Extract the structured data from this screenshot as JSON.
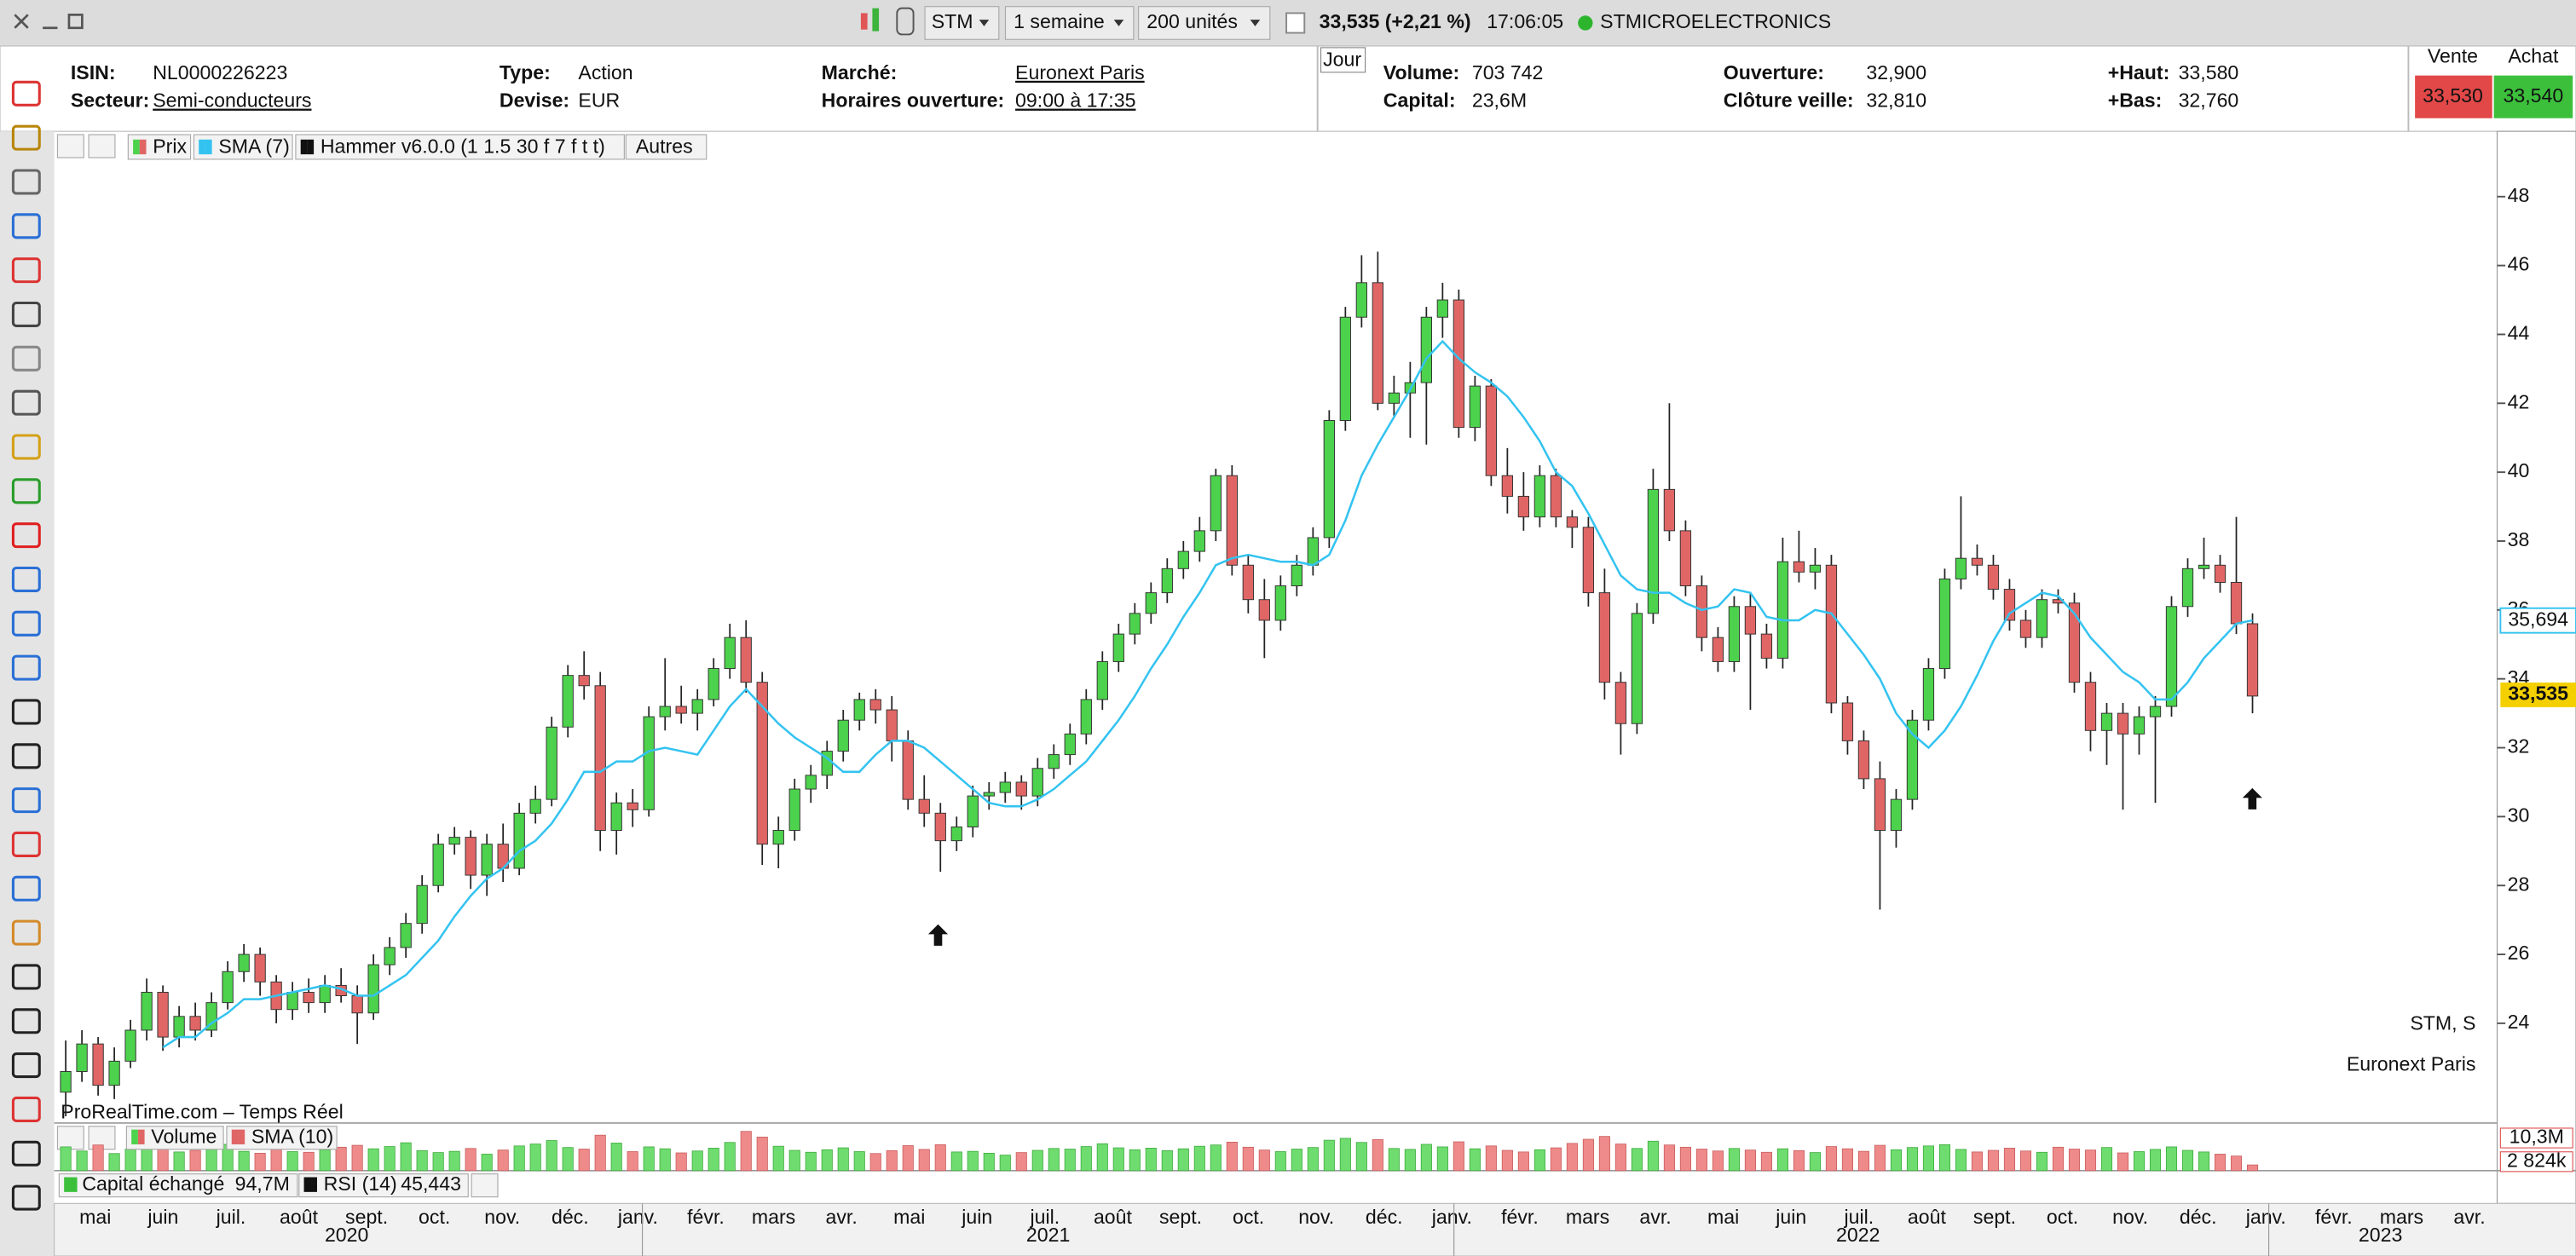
{
  "toolbar": {
    "symbol": "STM",
    "period": "1 semaine",
    "units": "200 unités",
    "quote": "33,535 (+2,21 %)",
    "time": "17:06:05",
    "name": "STMICROELECTRONICS"
  },
  "info": {
    "fields": [
      {
        "label": "ISIN:",
        "value": "NL0000226223"
      },
      {
        "label": "Secteur:",
        "value": "Semi-conducteurs",
        "link": true
      },
      {
        "label": "Type:",
        "value": "Action"
      },
      {
        "label": "Devise:",
        "value": "EUR"
      },
      {
        "label": "Marché:",
        "value": "Euronext Paris",
        "link": true
      },
      {
        "label": "Horaires ouverture:",
        "value": "09:00 à 17:35",
        "link": true
      },
      {
        "label": "Volume:",
        "value": "703 742"
      },
      {
        "label": "Capital:",
        "value": "23,6M"
      },
      {
        "label": "Ouverture:",
        "value": "32,900"
      },
      {
        "label": "Clôture veille:",
        "value": "32,810"
      },
      {
        "label": "+Haut:",
        "value": "33,580"
      },
      {
        "label": "+Bas:",
        "value": "32,760"
      }
    ],
    "period_tab": "Jour",
    "sell": {
      "label": "Vente",
      "price": "33,530"
    },
    "buy": {
      "label": "Achat",
      "price": "33,540"
    }
  },
  "chart_data": {
    "type": "candlestick",
    "legend": [
      "Prix",
      "SMA (7)",
      "Hammer v6.0.0 (1 1.5 30 f 7 f t t)",
      "Autres"
    ],
    "up_color": "#4cd24c",
    "down_color": "#e06666",
    "ylim": [
      21.2,
      49.8
    ],
    "yticks": [
      24,
      26,
      28,
      30,
      32,
      34,
      36,
      38,
      40,
      42,
      44,
      46,
      48
    ],
    "month_labels": [
      "mai",
      "juin",
      "juil.",
      "août",
      "sept.",
      "oct.",
      "nov.",
      "déc.",
      "janv.",
      "févr.",
      "mars",
      "avr.",
      "mai",
      "juin",
      "juil.",
      "août",
      "sept.",
      "oct.",
      "nov.",
      "déc.",
      "janv.",
      "févr.",
      "mars",
      "avr.",
      "mai",
      "juin",
      "juil.",
      "août",
      "sept.",
      "oct.",
      "nov.",
      "déc.",
      "janv.",
      "févr.",
      "mars",
      "avr."
    ],
    "years": [
      "2020",
      "2021",
      "2022",
      "2023"
    ],
    "ohlc": [
      [
        22.0,
        23.5,
        21.3,
        22.6
      ],
      [
        22.6,
        23.8,
        22.3,
        23.4
      ],
      [
        23.4,
        23.6,
        21.9,
        22.2
      ],
      [
        22.2,
        23.3,
        21.8,
        22.9
      ],
      [
        22.9,
        24.1,
        22.7,
        23.8
      ],
      [
        23.8,
        25.3,
        23.5,
        24.9
      ],
      [
        24.9,
        25.1,
        23.2,
        23.6
      ],
      [
        23.6,
        24.5,
        23.3,
        24.2
      ],
      [
        24.2,
        24.6,
        23.5,
        23.8
      ],
      [
        23.8,
        24.9,
        23.6,
        24.6
      ],
      [
        24.6,
        25.8,
        24.4,
        25.5
      ],
      [
        25.5,
        26.3,
        25.2,
        26.0
      ],
      [
        26.0,
        26.2,
        24.8,
        25.2
      ],
      [
        25.2,
        25.4,
        24.0,
        24.4
      ],
      [
        24.4,
        25.2,
        24.1,
        24.9
      ],
      [
        24.9,
        25.3,
        24.3,
        24.6
      ],
      [
        24.6,
        25.4,
        24.3,
        25.1
      ],
      [
        25.1,
        25.6,
        24.6,
        24.8
      ],
      [
        24.8,
        25.1,
        23.4,
        24.3
      ],
      [
        24.3,
        26.0,
        24.1,
        25.7
      ],
      [
        25.7,
        26.5,
        25.4,
        26.2
      ],
      [
        26.2,
        27.2,
        25.9,
        26.9
      ],
      [
        26.9,
        28.3,
        26.6,
        28.0
      ],
      [
        28.0,
        29.5,
        27.8,
        29.2
      ],
      [
        29.2,
        29.7,
        28.9,
        29.4
      ],
      [
        29.4,
        29.6,
        27.9,
        28.3
      ],
      [
        28.3,
        29.5,
        27.7,
        29.2
      ],
      [
        29.2,
        29.8,
        28.1,
        28.5
      ],
      [
        28.5,
        30.4,
        28.3,
        30.1
      ],
      [
        30.1,
        30.9,
        29.8,
        30.5
      ],
      [
        30.5,
        32.9,
        30.3,
        32.6
      ],
      [
        32.6,
        34.4,
        32.3,
        34.1
      ],
      [
        34.1,
        34.8,
        33.4,
        33.8
      ],
      [
        33.8,
        34.2,
        29.0,
        29.6
      ],
      [
        29.6,
        30.7,
        28.9,
        30.4
      ],
      [
        30.4,
        30.8,
        29.7,
        30.2
      ],
      [
        30.2,
        33.2,
        30.0,
        32.9
      ],
      [
        32.9,
        34.6,
        32.5,
        33.2
      ],
      [
        33.2,
        33.8,
        32.7,
        33.0
      ],
      [
        33.0,
        33.7,
        32.5,
        33.4
      ],
      [
        33.4,
        34.6,
        33.2,
        34.3
      ],
      [
        34.3,
        35.6,
        34.0,
        35.2
      ],
      [
        35.2,
        35.7,
        33.6,
        33.9
      ],
      [
        33.9,
        34.2,
        28.6,
        29.2
      ],
      [
        29.2,
        30.0,
        28.5,
        29.6
      ],
      [
        29.6,
        31.1,
        29.3,
        30.8
      ],
      [
        30.8,
        31.5,
        30.4,
        31.2
      ],
      [
        31.2,
        32.2,
        30.8,
        31.9
      ],
      [
        31.9,
        33.1,
        31.6,
        32.8
      ],
      [
        32.8,
        33.6,
        32.5,
        33.4
      ],
      [
        33.4,
        33.7,
        32.7,
        33.1
      ],
      [
        33.1,
        33.5,
        31.6,
        32.2
      ],
      [
        32.2,
        32.5,
        30.2,
        30.5
      ],
      [
        30.5,
        31.2,
        29.7,
        30.1
      ],
      [
        30.1,
        30.4,
        28.4,
        29.3
      ],
      [
        29.3,
        30.0,
        29.0,
        29.7
      ],
      [
        29.7,
        30.9,
        29.4,
        30.6
      ],
      [
        30.6,
        31.0,
        30.2,
        30.7
      ],
      [
        30.7,
        31.3,
        30.4,
        31.0
      ],
      [
        31.0,
        31.2,
        30.2,
        30.6
      ],
      [
        30.6,
        31.7,
        30.3,
        31.4
      ],
      [
        31.4,
        32.1,
        31.1,
        31.8
      ],
      [
        31.8,
        32.7,
        31.5,
        32.4
      ],
      [
        32.4,
        33.7,
        32.1,
        33.4
      ],
      [
        33.4,
        34.8,
        33.1,
        34.5
      ],
      [
        34.5,
        35.6,
        34.2,
        35.3
      ],
      [
        35.3,
        36.2,
        35.0,
        35.9
      ],
      [
        35.9,
        36.8,
        35.6,
        36.5
      ],
      [
        36.5,
        37.5,
        36.2,
        37.2
      ],
      [
        37.2,
        38.0,
        36.9,
        37.7
      ],
      [
        37.7,
        38.7,
        37.4,
        38.3
      ],
      [
        38.3,
        40.1,
        38.0,
        39.9
      ],
      [
        39.9,
        40.2,
        37.0,
        37.3
      ],
      [
        37.3,
        37.6,
        35.9,
        36.3
      ],
      [
        36.3,
        36.9,
        34.6,
        35.7
      ],
      [
        35.7,
        37.0,
        35.4,
        36.7
      ],
      [
        36.7,
        37.6,
        36.4,
        37.3
      ],
      [
        37.3,
        38.4,
        37.0,
        38.1
      ],
      [
        38.1,
        41.8,
        37.8,
        41.5
      ],
      [
        41.5,
        44.8,
        41.2,
        44.5
      ],
      [
        44.5,
        46.3,
        44.2,
        45.5
      ],
      [
        45.5,
        46.4,
        41.8,
        42.0
      ],
      [
        42.0,
        42.8,
        41.6,
        42.3
      ],
      [
        42.3,
        43.2,
        41.0,
        42.6
      ],
      [
        42.6,
        44.8,
        40.8,
        44.5
      ],
      [
        44.5,
        45.5,
        43.9,
        45.0
      ],
      [
        45.0,
        45.3,
        41.0,
        41.3
      ],
      [
        41.3,
        42.8,
        40.9,
        42.5
      ],
      [
        42.5,
        42.7,
        39.6,
        39.9
      ],
      [
        39.9,
        40.7,
        38.8,
        39.3
      ],
      [
        39.3,
        40.0,
        38.3,
        38.7
      ],
      [
        38.7,
        40.2,
        38.4,
        39.9
      ],
      [
        39.9,
        40.1,
        38.4,
        38.7
      ],
      [
        38.7,
        38.9,
        37.8,
        38.4
      ],
      [
        38.4,
        38.7,
        36.1,
        36.5
      ],
      [
        36.5,
        37.2,
        33.4,
        33.9
      ],
      [
        33.9,
        34.2,
        31.8,
        32.7
      ],
      [
        32.7,
        36.2,
        32.4,
        35.9
      ],
      [
        35.9,
        40.1,
        35.6,
        39.5
      ],
      [
        39.5,
        42.0,
        38.0,
        38.3
      ],
      [
        38.3,
        38.6,
        36.4,
        36.7
      ],
      [
        36.7,
        37.0,
        34.8,
        35.2
      ],
      [
        35.2,
        35.5,
        34.2,
        34.5
      ],
      [
        34.5,
        36.4,
        34.2,
        36.1
      ],
      [
        36.1,
        36.5,
        33.1,
        35.3
      ],
      [
        35.3,
        35.6,
        34.3,
        34.6
      ],
      [
        34.6,
        38.1,
        34.3,
        37.4
      ],
      [
        37.4,
        38.3,
        36.8,
        37.1
      ],
      [
        37.1,
        37.8,
        36.6,
        37.3
      ],
      [
        37.3,
        37.6,
        33.0,
        33.3
      ],
      [
        33.3,
        33.5,
        31.8,
        32.2
      ],
      [
        32.2,
        32.5,
        30.8,
        31.1
      ],
      [
        31.1,
        31.6,
        27.3,
        29.6
      ],
      [
        29.6,
        30.8,
        29.1,
        30.5
      ],
      [
        30.5,
        33.1,
        30.2,
        32.8
      ],
      [
        32.8,
        34.6,
        32.5,
        34.3
      ],
      [
        34.3,
        37.2,
        34.0,
        36.9
      ],
      [
        36.9,
        39.3,
        36.6,
        37.5
      ],
      [
        37.5,
        37.9,
        37.0,
        37.3
      ],
      [
        37.3,
        37.6,
        36.3,
        36.6
      ],
      [
        36.6,
        36.9,
        35.4,
        35.7
      ],
      [
        35.7,
        36.0,
        34.9,
        35.2
      ],
      [
        35.2,
        36.6,
        34.9,
        36.3
      ],
      [
        36.3,
        36.6,
        35.9,
        36.2
      ],
      [
        36.2,
        36.5,
        33.6,
        33.9
      ],
      [
        33.9,
        34.2,
        31.9,
        32.5
      ],
      [
        32.5,
        33.3,
        31.5,
        33.0
      ],
      [
        33.0,
        33.3,
        30.2,
        32.4
      ],
      [
        32.4,
        33.2,
        31.8,
        32.9
      ],
      [
        32.9,
        33.5,
        30.4,
        33.2
      ],
      [
        33.2,
        36.4,
        32.9,
        36.1
      ],
      [
        36.1,
        37.5,
        35.8,
        37.2
      ],
      [
        37.2,
        38.1,
        36.9,
        37.3
      ],
      [
        37.3,
        37.6,
        36.5,
        36.8
      ],
      [
        36.8,
        38.7,
        35.3,
        35.6
      ],
      [
        35.6,
        35.9,
        33.0,
        33.5
      ]
    ],
    "sma": {
      "name": "SMA (7)",
      "color": "#33c3f0",
      "values": [
        null,
        null,
        null,
        null,
        null,
        null,
        23.3,
        23.6,
        23.6,
        24.0,
        24.3,
        24.7,
        24.7,
        24.8,
        24.9,
        25.0,
        25.1,
        25.0,
        24.8,
        24.8,
        25.1,
        25.4,
        25.9,
        26.4,
        27.1,
        27.7,
        28.2,
        28.5,
        29.0,
        29.3,
        29.8,
        30.5,
        31.3,
        31.3,
        31.6,
        31.6,
        31.9,
        32.0,
        31.9,
        31.8,
        32.5,
        33.2,
        33.7,
        33.2,
        32.7,
        32.3,
        32.0,
        31.7,
        31.3,
        31.3,
        31.8,
        32.2,
        32.2,
        32.0,
        31.6,
        31.2,
        30.8,
        30.4,
        30.3,
        30.3,
        30.5,
        30.8,
        31.2,
        31.6,
        32.2,
        32.8,
        33.5,
        34.3,
        35.0,
        35.8,
        36.5,
        37.3,
        37.5,
        37.6,
        37.5,
        37.4,
        37.4,
        37.3,
        37.6,
        38.6,
        39.9,
        40.8,
        41.6,
        42.4,
        43.3,
        43.8,
        43.3,
        42.9,
        42.6,
        42.2,
        41.6,
        40.9,
        40.0,
        39.6,
        38.8,
        37.9,
        37.0,
        36.6,
        36.5,
        36.5,
        36.2,
        36.0,
        36.1,
        36.6,
        36.5,
        35.8,
        35.7,
        35.7,
        36.0,
        35.9,
        35.3,
        34.7,
        34.0,
        33.0,
        32.4,
        32.0,
        32.5,
        33.2,
        34.1,
        35.1,
        35.9,
        36.2,
        36.5,
        36.4,
        35.9,
        35.2,
        34.7,
        34.2,
        33.9,
        33.4,
        33.4,
        33.9,
        34.6,
        35.1,
        35.6,
        35.7
      ]
    },
    "last_price": {
      "value": 33.535,
      "label": "33,535"
    },
    "sma_last": {
      "value": 35.694,
      "label": "35,694"
    },
    "watermark": [
      "STM, S",
      "Euronext Paris"
    ],
    "source": "ProRealTime.com – Temps Réel",
    "volume": {
      "legend": [
        "Volume",
        "SMA (10)"
      ],
      "ylim": [
        0,
        14
      ],
      "values": [
        7.5,
        6.2,
        8.1,
        5.4,
        6.8,
        9.2,
        7.1,
        5.9,
        6.4,
        7.7,
        8.3,
        6.1,
        5.5,
        7.2,
        6.0,
        5.8,
        6.6,
        7.4,
        8.0,
        6.9,
        7.6,
        8.8,
        6.3,
        5.7,
        6.1,
        7.0,
        5.2,
        6.5,
        7.8,
        8.4,
        9.5,
        7.3,
        6.8,
        11.2,
        8.7,
        6.0,
        7.5,
        6.9,
        5.6,
        6.2,
        7.1,
        8.9,
        12.4,
        10.6,
        7.7,
        6.4,
        5.8,
        6.6,
        7.2,
        6.0,
        5.4,
        6.3,
        7.9,
        6.7,
        8.2,
        5.9,
        6.1,
        5.5,
        4.9,
        5.7,
        6.4,
        7.0,
        6.8,
        7.6,
        8.5,
        7.2,
        6.6,
        7.1,
        6.3,
        6.9,
        7.7,
        8.1,
        9.0,
        7.4,
        6.5,
        6.0,
        6.8,
        7.3,
        9.6,
        10.2,
        8.9,
        9.8,
        7.0,
        6.7,
        8.3,
        7.5,
        9.1,
        6.9,
        7.8,
        6.4,
        5.9,
        6.6,
        7.2,
        8.6,
        9.9,
        10.8,
        8.4,
        7.0,
        9.3,
        8.1,
        7.4,
        6.8,
        6.2,
        7.0,
        6.5,
        5.8,
        6.9,
        6.3,
        5.7,
        7.6,
        6.9,
        6.1,
        8.0,
        6.6,
        7.3,
        7.8,
        8.2,
        6.7,
        5.9,
        6.4,
        7.1,
        6.2,
        5.8,
        7.4,
        6.8,
        6.5,
        7.3,
        5.6,
        6.0,
        6.7,
        7.5,
        6.4,
        5.9,
        5.2,
        4.6,
        1.8
      ],
      "labels": [
        {
          "value": 10.3,
          "label": "10,3M"
        },
        {
          "value": 2.824,
          "label": "2 824k"
        }
      ]
    },
    "indicators": [
      {
        "name": "Capital échangé",
        "value": "94,7M"
      },
      {
        "name": "RSI (14)",
        "value": "45,443"
      }
    ]
  }
}
